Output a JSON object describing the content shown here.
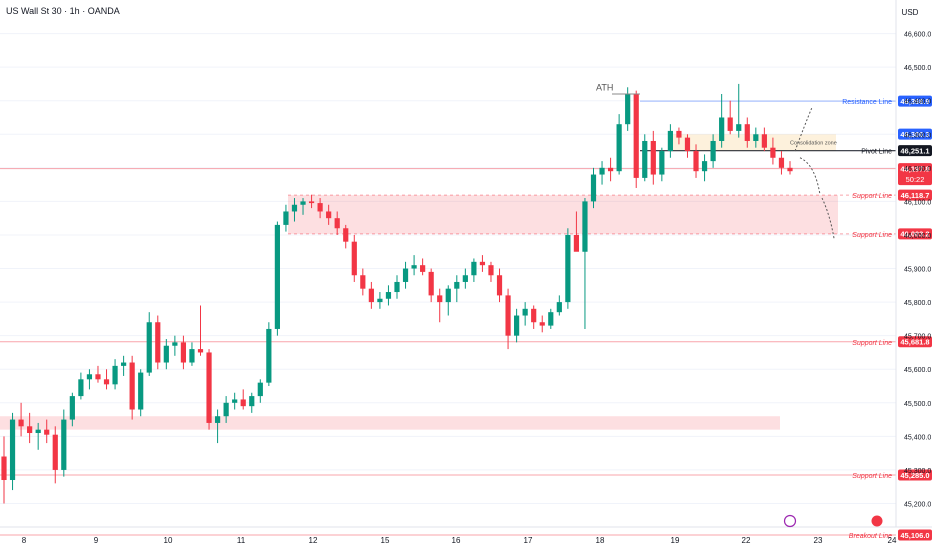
{
  "header": {
    "symbol_title": "US Wall St 30 · 1h · OANDA"
  },
  "chart_data": {
    "type": "candlestick",
    "title": "US Wall St 30 · 1h · OANDA",
    "currency": "USD",
    "ylim": [
      45130,
      46700
    ],
    "y_ticks": [
      45200,
      45300,
      45400,
      45500,
      45600,
      45700,
      45800,
      45900,
      46000,
      46100,
      46200,
      46300,
      46400,
      46500,
      46600
    ],
    "x_ticks": [
      "8",
      "9",
      "10",
      "11",
      "12",
      "15",
      "16",
      "17",
      "18",
      "19",
      "22",
      "23",
      "24"
    ],
    "candles_ohlc": [
      [
        45340,
        45400,
        45200,
        45270
      ],
      [
        45270,
        45470,
        45240,
        45450
      ],
      [
        45450,
        45500,
        45400,
        45430
      ],
      [
        45430,
        45470,
        45380,
        45410
      ],
      [
        45410,
        45440,
        45360,
        45420
      ],
      [
        45420,
        45450,
        45380,
        45405
      ],
      [
        45405,
        45430,
        45260,
        45300
      ],
      [
        45300,
        45480,
        45280,
        45450
      ],
      [
        45450,
        45530,
        45430,
        45520
      ],
      [
        45520,
        45590,
        45510,
        45570
      ],
      [
        45570,
        45600,
        45540,
        45585
      ],
      [
        45585,
        45610,
        45560,
        45570
      ],
      [
        45570,
        45600,
        45540,
        45555
      ],
      [
        45555,
        45630,
        45540,
        45610
      ],
      [
        45610,
        45640,
        45580,
        45620
      ],
      [
        45620,
        45640,
        45450,
        45480
      ],
      [
        45480,
        45600,
        45460,
        45590
      ],
      [
        45590,
        45770,
        45580,
        45740
      ],
      [
        45740,
        45760,
        45600,
        45620
      ],
      [
        45620,
        45690,
        45600,
        45670
      ],
      [
        45670,
        45700,
        45640,
        45680
      ],
      [
        45680,
        45700,
        45600,
        45620
      ],
      [
        45620,
        45680,
        45610,
        45660
      ],
      [
        45660,
        45790,
        45640,
        45650
      ],
      [
        45650,
        45660,
        45420,
        45440
      ],
      [
        45440,
        45480,
        45380,
        45460
      ],
      [
        45460,
        45520,
        45440,
        45500
      ],
      [
        45500,
        45530,
        45480,
        45510
      ],
      [
        45510,
        45540,
        45480,
        45490
      ],
      [
        45490,
        45530,
        45470,
        45520
      ],
      [
        45520,
        45570,
        45500,
        45560
      ],
      [
        45560,
        45740,
        45550,
        45720
      ],
      [
        45720,
        46040,
        45700,
        46030
      ],
      [
        46030,
        46090,
        46010,
        46070
      ],
      [
        46070,
        46110,
        46040,
        46090
      ],
      [
        46090,
        46110,
        46060,
        46100
      ],
      [
        46100,
        46120,
        46080,
        46095
      ],
      [
        46095,
        46110,
        46050,
        46070
      ],
      [
        46070,
        46090,
        46030,
        46050
      ],
      [
        46050,
        46070,
        46000,
        46020
      ],
      [
        46020,
        46030,
        45960,
        45980
      ],
      [
        45980,
        46000,
        45860,
        45880
      ],
      [
        45880,
        45900,
        45820,
        45840
      ],
      [
        45840,
        45860,
        45780,
        45800
      ],
      [
        45800,
        45830,
        45780,
        45810
      ],
      [
        45810,
        45850,
        45790,
        45830
      ],
      [
        45830,
        45880,
        45810,
        45860
      ],
      [
        45860,
        45920,
        45840,
        45900
      ],
      [
        45900,
        45940,
        45880,
        45910
      ],
      [
        45910,
        45930,
        45880,
        45890
      ],
      [
        45890,
        45900,
        45800,
        45820
      ],
      [
        45820,
        45840,
        45740,
        45800
      ],
      [
        45800,
        45850,
        45760,
        45840
      ],
      [
        45840,
        45880,
        45800,
        45860
      ],
      [
        45860,
        45900,
        45840,
        45880
      ],
      [
        45880,
        45930,
        45860,
        45920
      ],
      [
        45920,
        45940,
        45890,
        45910
      ],
      [
        45910,
        45920,
        45860,
        45880
      ],
      [
        45880,
        45900,
        45800,
        45820
      ],
      [
        45820,
        45840,
        45660,
        45700
      ],
      [
        45700,
        45780,
        45680,
        45760
      ],
      [
        45760,
        45800,
        45730,
        45780
      ],
      [
        45780,
        45790,
        45720,
        45740
      ],
      [
        45740,
        45760,
        45710,
        45730
      ],
      [
        45730,
        45780,
        45720,
        45770
      ],
      [
        45770,
        45820,
        45760,
        45800
      ],
      [
        45800,
        46020,
        45780,
        46000
      ],
      [
        46000,
        46070,
        45960,
        45950
      ],
      [
        45950,
        46110,
        45720,
        46100
      ],
      [
        46100,
        46200,
        46080,
        46180
      ],
      [
        46180,
        46220,
        46150,
        46200
      ],
      [
        46200,
        46230,
        46160,
        46190
      ],
      [
        46190,
        46360,
        46180,
        46330
      ],
      [
        46330,
        46440,
        46310,
        46420
      ],
      [
        46420,
        46430,
        46140,
        46170
      ],
      [
        46170,
        46300,
        46160,
        46280
      ],
      [
        46280,
        46310,
        46150,
        46180
      ],
      [
        46180,
        46260,
        46160,
        46250
      ],
      [
        46250,
        46330,
        46230,
        46310
      ],
      [
        46310,
        46320,
        46270,
        46290
      ],
      [
        46290,
        46300,
        46230,
        46250
      ],
      [
        46250,
        46270,
        46170,
        46190
      ],
      [
        46190,
        46240,
        46160,
        46220
      ],
      [
        46220,
        46300,
        46200,
        46280
      ],
      [
        46280,
        46420,
        46260,
        46350
      ],
      [
        46350,
        46400,
        46300,
        46310
      ],
      [
        46310,
        46450,
        46290,
        46330
      ],
      [
        46330,
        46350,
        46260,
        46280
      ],
      [
        46280,
        46320,
        46260,
        46300
      ],
      [
        46300,
        46320,
        46250,
        46260
      ],
      [
        46260,
        46290,
        46210,
        46230
      ],
      [
        46230,
        46250,
        46180,
        46200
      ],
      [
        46200,
        46220,
        46180,
        46190
      ]
    ],
    "price_labels": [
      {
        "name": "resistance",
        "text": "Resistance Line",
        "value": 46398.9,
        "label": "46,398.9",
        "color": "#2962ff"
      },
      {
        "name": "upper",
        "text": "",
        "value": 46300.3,
        "label": "46,300.3",
        "color": "#2962ff"
      },
      {
        "name": "pivot",
        "text": "Pivot Line",
        "value": 46251.1,
        "label": "46,251.1",
        "color": "#131722"
      },
      {
        "name": "last",
        "text": "",
        "value": 46197.8,
        "label": "46,197.8",
        "sub": "50:22",
        "color": "#f23645"
      },
      {
        "name": "support-1",
        "text": "Support Line",
        "value": 46118.7,
        "label": "46,118.7",
        "color": "#f23645"
      },
      {
        "name": "support-2",
        "text": "Support Line",
        "value": 46003.2,
        "label": "46,003.2",
        "color": "#f23645"
      },
      {
        "name": "support-3",
        "text": "Support Line",
        "value": 45681.8,
        "label": "45,681.8",
        "color": "#f23645"
      },
      {
        "name": "support-4",
        "text": "Support Line",
        "value": 45285.0,
        "label": "45,285.0",
        "color": "#f23645"
      },
      {
        "name": "breakout",
        "text": "Breakout Line",
        "value": 45106.0,
        "label": "45,106.0",
        "color": "#f23645"
      }
    ],
    "zones": [
      {
        "name": "support-zone-upper",
        "y1": 46003.2,
        "y2": 46118.7,
        "color": "#f23645"
      },
      {
        "name": "support-zone-lower",
        "y1": 45420,
        "y2": 45460,
        "color": "#f23645"
      },
      {
        "name": "consolidation-zone",
        "y1": 46250,
        "y2": 46300,
        "color": "#f5a623"
      }
    ],
    "annotations": {
      "ath": "ATH",
      "consolidation": "Consolidation zone"
    },
    "colors": {
      "up": "#089981",
      "down": "#f23645",
      "grid": "#f0f3fa",
      "text": "#131722"
    }
  }
}
